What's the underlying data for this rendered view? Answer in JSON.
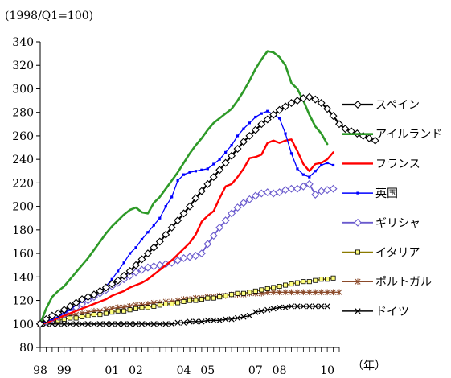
{
  "chart_data": {
    "type": "line",
    "title": "",
    "unit_label": "(1998/Q1=100)",
    "x_unit_label": "（年）",
    "xlabel": "",
    "ylabel": "",
    "ylim": [
      80,
      340
    ],
    "y_ticks": [
      80,
      100,
      120,
      140,
      160,
      180,
      200,
      220,
      240,
      260,
      280,
      300,
      320,
      340
    ],
    "x_start_year": 1998,
    "x_start_quarter": 1,
    "x_tick_labels": [
      {
        "text": "98",
        "year": 1998
      },
      {
        "text": "99",
        "year": 1999
      },
      {
        "text": "01",
        "year": 2001
      },
      {
        "text": "02",
        "year": 2002
      },
      {
        "text": "04",
        "year": 2004
      },
      {
        "text": "05",
        "year": 2005
      },
      {
        "text": "07",
        "year": 2007
      },
      {
        "text": "08",
        "year": 2008
      },
      {
        "text": "10",
        "year": 2010
      }
    ],
    "grid": false,
    "legend_position": "right",
    "series": [
      {
        "name": "スペイン",
        "color": "#000000",
        "marker": "diamond",
        "line_width": 2.2,
        "values": [
          100,
          104,
          107,
          109,
          112,
          115,
          118,
          121,
          123,
          125,
          128,
          131,
          134,
          137,
          141,
          145,
          150,
          155,
          160,
          165,
          170,
          176,
          182,
          188,
          194,
          200,
          207,
          213,
          219,
          225,
          231,
          237,
          243,
          249,
          255,
          260,
          265,
          270,
          274,
          278,
          282,
          285,
          288,
          290,
          292,
          293,
          291,
          288,
          283,
          277,
          270,
          266,
          264,
          262,
          260,
          258,
          256
        ]
      },
      {
        "name": "アイルランド",
        "color": "#2e9a28",
        "marker": "none",
        "line_width": 2.6,
        "values": [
          100,
          113,
          123,
          128,
          132,
          138,
          144,
          150,
          156,
          163,
          170,
          177,
          183,
          188,
          193,
          197,
          199,
          195,
          194,
          203,
          208,
          215,
          222,
          229,
          237,
          245,
          252,
          258,
          265,
          271,
          275,
          279,
          283,
          290,
          298,
          307,
          317,
          325,
          332,
          331,
          327,
          320,
          305,
          300,
          290,
          278,
          268,
          262,
          253
        ]
      },
      {
        "name": "フランス",
        "color": "#ff0000",
        "marker": "none",
        "line_width": 2.4,
        "values": [
          100,
          101,
          103,
          105,
          107,
          109,
          111,
          113,
          115,
          117,
          119,
          121,
          124,
          126,
          128,
          131,
          133,
          135,
          138,
          142,
          146,
          150,
          154,
          159,
          164,
          169,
          176,
          187,
          192,
          196,
          207,
          217,
          219,
          225,
          232,
          241,
          242,
          244,
          254,
          256,
          254,
          256,
          257,
          247,
          236,
          230,
          236,
          237,
          240,
          246
        ]
      },
      {
        "name": "英国",
        "color": "#0000ff",
        "marker": "small-square",
        "line_width": 1.3,
        "values": [
          100,
          102,
          104,
          106,
          109,
          112,
          116,
          119,
          122,
          125,
          128,
          132,
          138,
          145,
          152,
          160,
          165,
          172,
          178,
          184,
          190,
          200,
          208,
          222,
          227,
          229,
          230,
          231,
          232,
          236,
          240,
          246,
          252,
          260,
          266,
          271,
          276,
          279,
          281,
          278,
          275,
          262,
          245,
          232,
          227,
          225,
          230,
          235,
          237,
          235
        ]
      },
      {
        "name": "ギリシャ",
        "color": "#6a5acd",
        "marker": "diamond",
        "line_width": 1.8,
        "values": [
          100,
          102,
          104,
          106,
          108,
          111,
          114,
          117,
          120,
          123,
          126,
          129,
          132,
          135,
          138,
          141,
          144,
          146,
          148,
          149,
          150,
          151,
          152,
          154,
          156,
          157,
          158,
          160,
          168,
          175,
          182,
          188,
          194,
          199,
          203,
          206,
          209,
          211,
          212,
          211,
          212,
          214,
          215,
          215,
          217,
          219,
          210,
          213,
          214,
          215
        ]
      },
      {
        "name": "イタリア",
        "color": "#8b7a00",
        "marker": "square",
        "line_width": 1.6,
        "values": [
          100,
          101,
          102,
          103,
          104,
          105,
          105,
          106,
          107,
          108,
          108,
          109,
          110,
          111,
          111,
          112,
          113,
          114,
          114,
          115,
          116,
          117,
          117,
          118,
          119,
          120,
          120,
          121,
          122,
          122,
          123,
          124,
          125,
          126,
          126,
          127,
          128,
          129,
          130,
          131,
          132,
          133,
          134,
          135,
          136,
          136,
          137,
          138,
          138,
          139
        ]
      },
      {
        "name": "ポルトガル",
        "color": "#8b4a2a",
        "marker": "asterisk",
        "line_width": 1.4,
        "values": [
          100,
          102,
          104,
          105,
          106,
          107,
          108,
          109,
          110,
          111,
          111,
          112,
          113,
          114,
          114,
          115,
          116,
          116,
          117,
          118,
          118,
          119,
          119,
          120,
          121,
          121,
          122,
          122,
          123,
          123,
          124,
          124,
          125,
          125,
          125,
          126,
          126,
          126,
          127,
          127,
          127,
          127,
          127,
          127,
          127,
          127,
          127,
          127,
          127,
          127,
          127
        ]
      },
      {
        "name": "ドイツ",
        "color": "#000000",
        "marker": "cross",
        "line_width": 1.4,
        "values": [
          100,
          100,
          100,
          100,
          100,
          100,
          100,
          100,
          100,
          100,
          100,
          100,
          100,
          100,
          100,
          100,
          100,
          100,
          100,
          100,
          100,
          100,
          100,
          101,
          101,
          102,
          102,
          102,
          103,
          103,
          103,
          104,
          104,
          105,
          106,
          107,
          110,
          111,
          112,
          113,
          114,
          114,
          115,
          115,
          115,
          115,
          115,
          115,
          115
        ]
      }
    ]
  }
}
